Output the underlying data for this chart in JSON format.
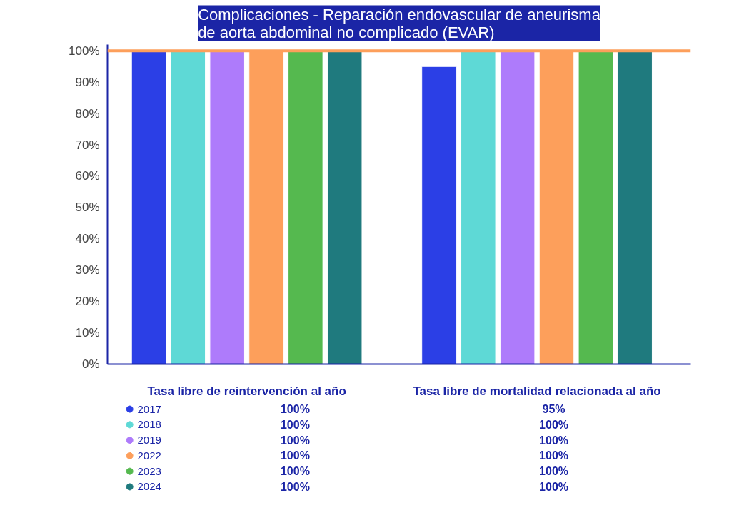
{
  "chart_data": {
    "type": "bar",
    "title": "Complicaciones - Reparación endovascular de aneurisma\nde aorta abdominal no complicado (EVAR)",
    "categories": [
      "Tasa libre de reintervención al año",
      "Tasa libre de mortalidad relacionada al año"
    ],
    "series": [
      {
        "name": "2017",
        "color": "#2b3fe6",
        "values": [
          100,
          95
        ],
        "value_labels": [
          "100%",
          "95%"
        ]
      },
      {
        "name": "2018",
        "color": "#5ed9d6",
        "values": [
          100,
          100
        ],
        "value_labels": [
          "100%",
          "100%"
        ]
      },
      {
        "name": "2019",
        "color": "#ae7bfb",
        "values": [
          100,
          100
        ],
        "value_labels": [
          "100%",
          "100%"
        ]
      },
      {
        "name": "2022",
        "color": "#fd9f5b",
        "values": [
          100,
          100
        ],
        "value_labels": [
          "100%",
          "100%"
        ]
      },
      {
        "name": "2023",
        "color": "#55b94f",
        "values": [
          100,
          100
        ],
        "value_labels": [
          "100%",
          "100%"
        ]
      },
      {
        "name": "2024",
        "color": "#1f7a7e",
        "values": [
          100,
          100
        ],
        "value_labels": [
          "100%",
          "100%"
        ]
      }
    ],
    "ylim": [
      0,
      100
    ],
    "yticks": [
      {
        "value": 0,
        "label": "0%"
      },
      {
        "value": 10,
        "label": "10%"
      },
      {
        "value": 20,
        "label": "20%"
      },
      {
        "value": 30,
        "label": "30%"
      },
      {
        "value": 40,
        "label": "40%"
      },
      {
        "value": 50,
        "label": "50%"
      },
      {
        "value": 60,
        "label": "60%"
      },
      {
        "value": 70,
        "label": "70%"
      },
      {
        "value": 80,
        "label": "80%"
      },
      {
        "value": 90,
        "label": "90%"
      },
      {
        "value": 100,
        "label": "100%"
      }
    ],
    "ref_lines": [
      {
        "axis": "y",
        "value": 100,
        "color": "#fd9f5b"
      }
    ],
    "grid": false,
    "legend": "bottom left"
  }
}
